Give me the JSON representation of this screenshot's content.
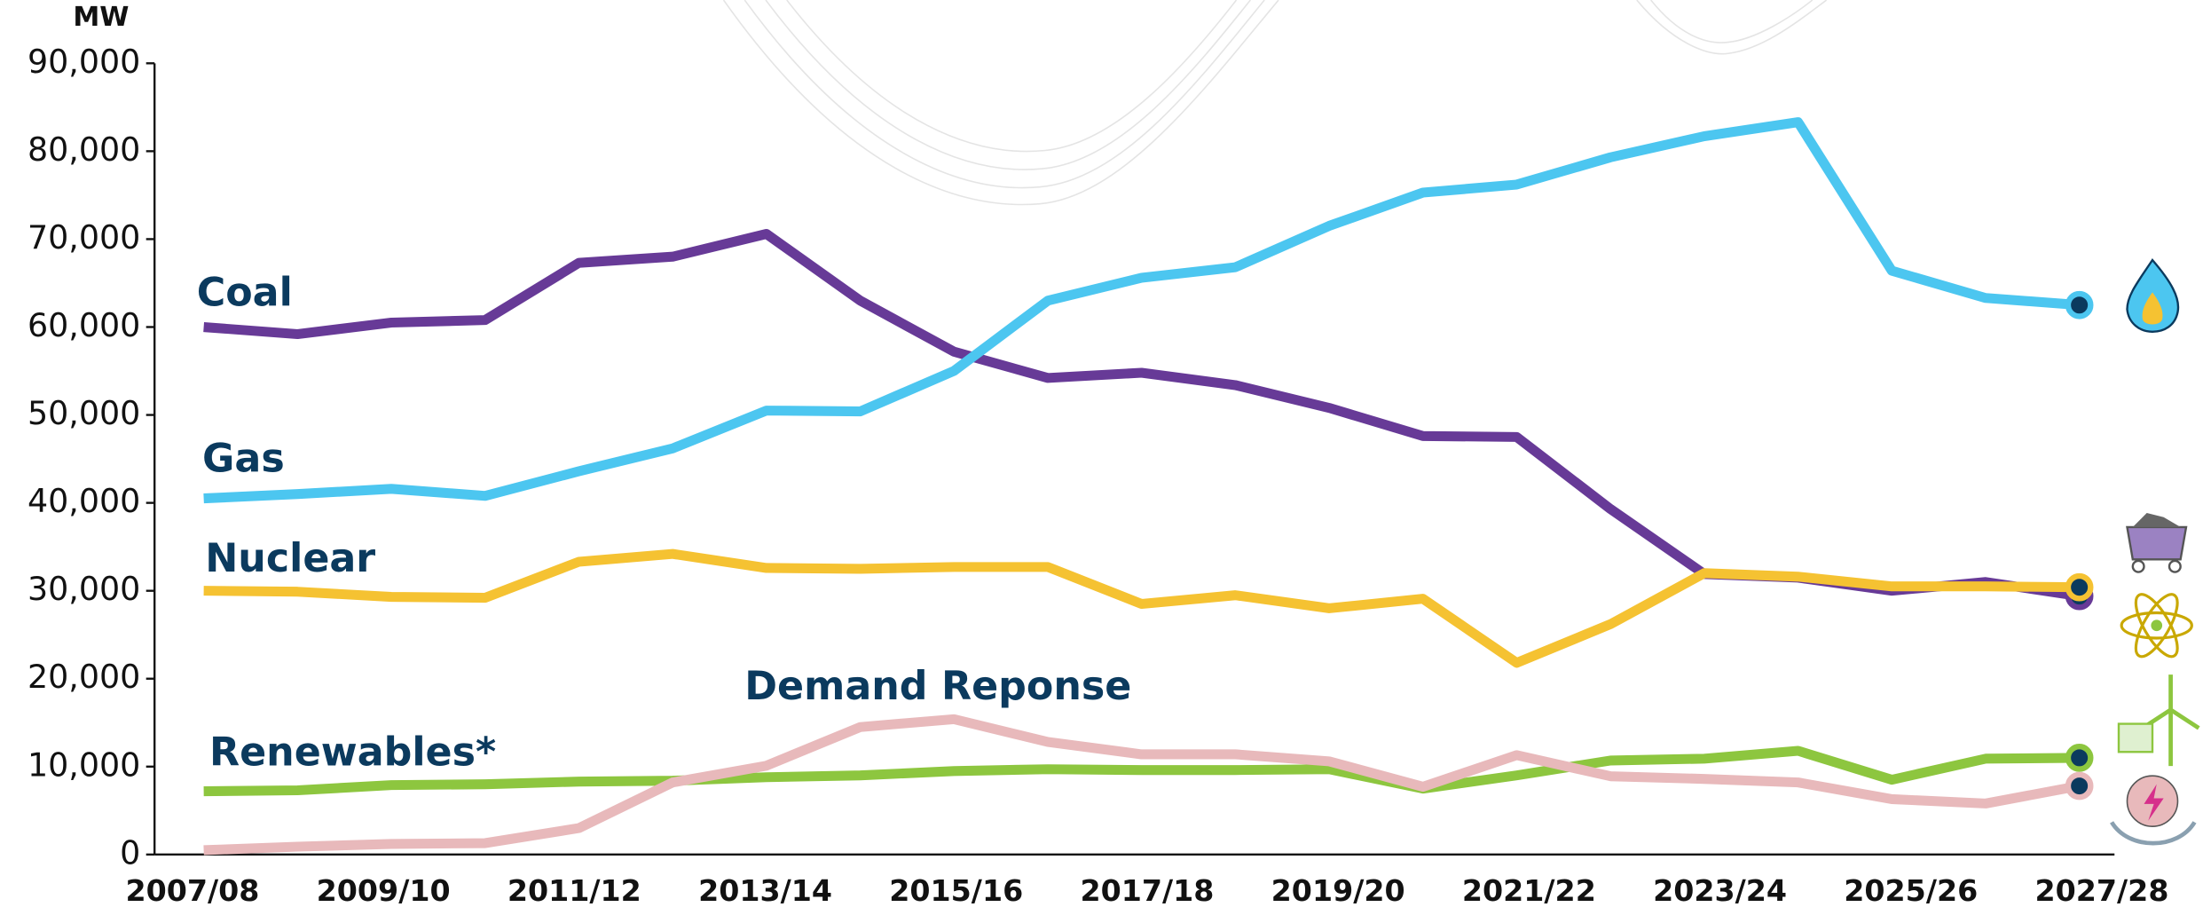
{
  "chart_data": {
    "type": "line",
    "y_label": "MW",
    "categories": [
      "2007/08",
      null,
      "2009/10",
      null,
      "2011/12",
      null,
      "2013/14",
      null,
      "2015/16",
      null,
      "2017/18",
      null,
      "2019/20",
      null,
      "2021/22",
      null,
      "2023/24",
      null,
      "2025/26",
      null,
      "2027/28"
    ],
    "series": [
      {
        "name": "Coal",
        "color": "#673a97",
        "values": [
          60000,
          59200,
          60500,
          60800,
          67300,
          68000,
          70600,
          63000,
          57200,
          54200,
          54800,
          53400,
          50800,
          47600,
          47500,
          39300,
          31900,
          31500,
          30000,
          31000,
          29400
        ]
      },
      {
        "name": "Gas",
        "color": "#4cc6f0",
        "values": [
          40500,
          41000,
          41600,
          40800,
          43600,
          46200,
          50500,
          50400,
          55000,
          63000,
          65600,
          66800,
          71500,
          75300,
          76200,
          79300,
          81700,
          83300,
          66400,
          63300,
          62500
        ]
      },
      {
        "name": "Nuclear",
        "color": "#f5c232",
        "values": [
          30000,
          29900,
          29300,
          29200,
          33300,
          34200,
          32600,
          32500,
          32700,
          32700,
          28500,
          29500,
          28000,
          29100,
          21800,
          26200,
          32000,
          31600,
          30500,
          30500,
          30400
        ]
      },
      {
        "name": "Renewables*",
        "color": "#8dc63f",
        "values": [
          7200,
          7300,
          7900,
          8000,
          8300,
          8400,
          8800,
          9000,
          9500,
          9700,
          9600,
          9600,
          9700,
          7500,
          9000,
          10700,
          10900,
          11800,
          8500,
          10900,
          11000
        ]
      },
      {
        "name": "Demand Reponse",
        "color": "#e8b9bb",
        "values": [
          500,
          900,
          1200,
          1300,
          3000,
          8200,
          10100,
          14500,
          15400,
          12800,
          11400,
          11400,
          10600,
          7700,
          11300,
          8900,
          8600,
          8200,
          6300,
          5800,
          7800
        ]
      }
    ],
    "ylim": [
      0,
      90000
    ],
    "yticks": [
      0,
      {
        "value": 10000,
        "label": "10,000"
      },
      {
        "value": 20000,
        "label": "20,000"
      },
      {
        "value": 30000,
        "label": "30,000"
      },
      {
        "value": 40000,
        "label": "40,000"
      },
      {
        "value": 50000,
        "label": "50,000"
      },
      {
        "value": 60000,
        "label": "60,000"
      },
      {
        "value": 70000,
        "label": "70,000"
      },
      {
        "value": 80000,
        "label": "80,000"
      },
      {
        "value": 90000,
        "label": "90,000"
      }
    ],
    "grid": false
  }
}
